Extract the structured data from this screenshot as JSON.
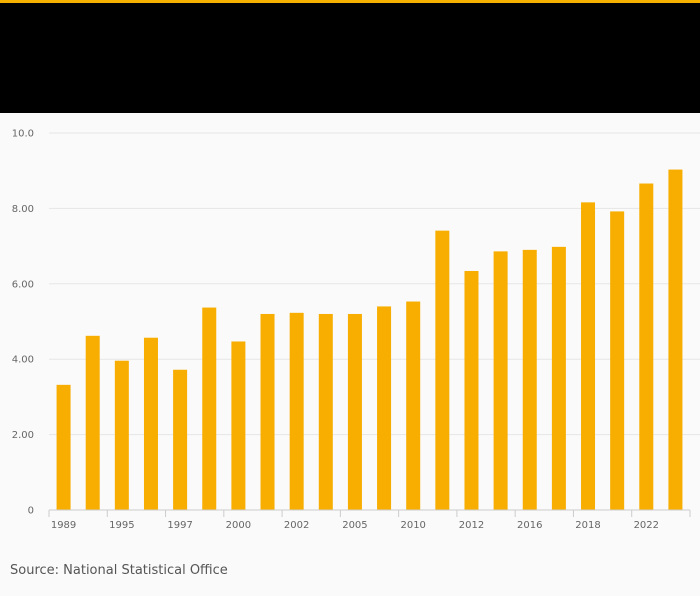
{
  "colors": {
    "accent": "#f5b000",
    "bar": "#f7ae00",
    "header": "#000000",
    "background": "#fafafa",
    "grid": "#e6e6e6",
    "axis": "#cccccc"
  },
  "source": "Source: National Statistical Office",
  "chart_data": {
    "type": "bar",
    "title": "",
    "xlabel": "",
    "ylabel": "",
    "ylim": [
      0,
      10
    ],
    "y_ticks": [
      0,
      2,
      4,
      6,
      8,
      10
    ],
    "y_tick_labels": [
      "0",
      "2.00",
      "4.00",
      "6.00",
      "8.00",
      "10.0"
    ],
    "grid": true,
    "x_tick_labels": [
      "1989",
      "1995",
      "1997",
      "2000",
      "2002",
      "2005",
      "2010",
      "2012",
      "2016",
      "2018",
      "2022"
    ],
    "categories": [
      "1989",
      "",
      "1995",
      "",
      "1997",
      "",
      "2000",
      "",
      "2002",
      "",
      "2005",
      "",
      "2010",
      "",
      "2012",
      "",
      "2016",
      "",
      "2018",
      "",
      "2022",
      ""
    ],
    "values": [
      3.32,
      4.62,
      3.96,
      4.57,
      3.72,
      5.37,
      4.47,
      5.2,
      5.23,
      5.2,
      5.2,
      5.4,
      5.53,
      7.41,
      6.34,
      6.86,
      6.9,
      6.98,
      8.16,
      7.92,
      8.66,
      9.03
    ]
  }
}
